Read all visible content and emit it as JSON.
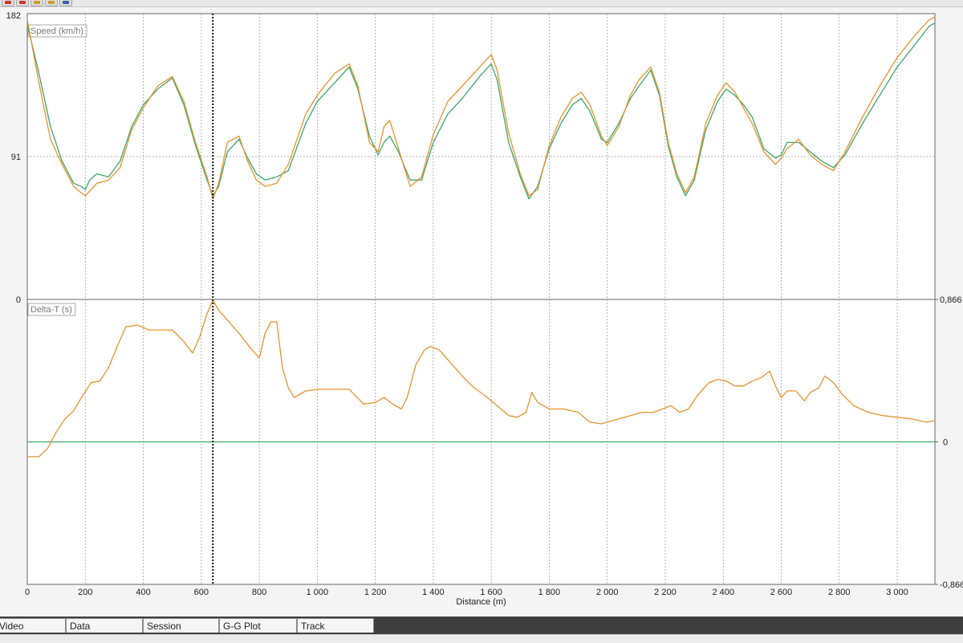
{
  "toolbar": {
    "icons": [
      "cursor-icon",
      "pencil-icon",
      "zoom-icon",
      "ruler-icon",
      "chart-icon"
    ]
  },
  "tabs": [
    {
      "label": "Video"
    },
    {
      "label": "Data"
    },
    {
      "label": "Session"
    },
    {
      "label": "G-G Plot"
    },
    {
      "label": "Track"
    }
  ],
  "colors": {
    "series_a": "#e8922e",
    "series_b": "#3fa56b",
    "grid": "#9a9a9a",
    "cursor": "#111111",
    "background": "#ffffff"
  },
  "chart_data": [
    {
      "type": "line",
      "title": "Speed (km/h)",
      "xlabel": "Distance (m)",
      "ylim": [
        0,
        182
      ],
      "yticks": [
        "182",
        "91",
        "0"
      ],
      "xlim": [
        0,
        3130
      ],
      "grid": true,
      "series": [
        {
          "color": "#e8922e",
          "x": [
            0,
            40,
            80,
            120,
            160,
            185,
            200,
            215,
            240,
            280,
            320,
            360,
            400,
            450,
            500,
            540,
            580,
            620,
            640,
            660,
            690,
            730,
            760,
            790,
            820,
            860,
            900,
            960,
            1000,
            1060,
            1110,
            1140,
            1180,
            1210,
            1230,
            1250,
            1280,
            1320,
            1360,
            1400,
            1450,
            1500,
            1560,
            1600,
            1620,
            1660,
            1700,
            1730,
            1760,
            1800,
            1840,
            1880,
            1910,
            1940,
            1980,
            2000,
            2040,
            2080,
            2110,
            2150,
            2180,
            2210,
            2240,
            2270,
            2300,
            2340,
            2380,
            2410,
            2440,
            2470,
            2500,
            2540,
            2580,
            2600,
            2620,
            2660,
            2700,
            2740,
            2780,
            2820,
            2880,
            2940,
            3000,
            3060,
            3110,
            3130
          ],
          "y": [
            178,
            138,
            102,
            86,
            72,
            68,
            66,
            69,
            74,
            76,
            84,
            108,
            122,
            136,
            142,
            126,
            100,
            78,
            64,
            74,
            100,
            104,
            88,
            76,
            72,
            74,
            86,
            118,
            130,
            144,
            150,
            136,
            100,
            94,
            110,
            114,
            96,
            72,
            78,
            105,
            126,
            136,
            148,
            156,
            146,
            106,
            80,
            66,
            70,
            98,
            116,
            128,
            132,
            124,
            104,
            98,
            110,
            130,
            140,
            148,
            132,
            100,
            80,
            68,
            78,
            112,
            130,
            138,
            132,
            122,
            112,
            94,
            86,
            90,
            96,
            102,
            92,
            86,
            82,
            94,
            116,
            136,
            154,
            168,
            178,
            180
          ]
        },
        {
          "color": "#3fa56b",
          "x": [
            0,
            40,
            80,
            120,
            160,
            185,
            200,
            215,
            240,
            280,
            320,
            360,
            400,
            450,
            500,
            540,
            580,
            620,
            640,
            660,
            690,
            730,
            760,
            790,
            820,
            860,
            900,
            960,
            1000,
            1060,
            1110,
            1140,
            1180,
            1210,
            1230,
            1250,
            1280,
            1320,
            1360,
            1400,
            1450,
            1500,
            1560,
            1600,
            1620,
            1660,
            1700,
            1730,
            1760,
            1800,
            1840,
            1880,
            1910,
            1940,
            1980,
            2000,
            2040,
            2080,
            2110,
            2150,
            2180,
            2210,
            2240,
            2270,
            2300,
            2340,
            2380,
            2410,
            2440,
            2470,
            2500,
            2540,
            2580,
            2600,
            2620,
            2660,
            2700,
            2740,
            2780,
            2820,
            2880,
            2940,
            3000,
            3060,
            3110,
            3130
          ],
          "y": [
            175,
            144,
            110,
            88,
            74,
            72,
            70,
            76,
            80,
            78,
            88,
            110,
            124,
            134,
            141,
            124,
            98,
            76,
            66,
            72,
            94,
            102,
            90,
            80,
            76,
            78,
            82,
            112,
            126,
            138,
            148,
            134,
            104,
            92,
            100,
            104,
            94,
            76,
            76,
            100,
            118,
            128,
            142,
            150,
            140,
            100,
            78,
            64,
            72,
            96,
            112,
            124,
            128,
            120,
            102,
            100,
            112,
            128,
            136,
            146,
            130,
            98,
            78,
            66,
            76,
            108,
            126,
            134,
            130,
            124,
            116,
            96,
            90,
            92,
            100,
            100,
            94,
            88,
            84,
            92,
            112,
            130,
            148,
            162,
            174,
            176
          ]
        }
      ]
    },
    {
      "type": "line",
      "title": "Delta-T (s)",
      "xlabel": "Distance (m)",
      "ylim": [
        -0.866,
        0.866
      ],
      "yticks": [
        "0,866",
        "0",
        "-0,866"
      ],
      "left_axis_label": "0",
      "xlim": [
        0,
        3130
      ],
      "xticks": [
        "0",
        "200",
        "400",
        "600",
        "800",
        "1 000",
        "1 200",
        "1 400",
        "1 600",
        "1 800",
        "2 000",
        "2 200",
        "2 400",
        "2 600",
        "2 800",
        "3 000"
      ],
      "xtick_values": [
        0,
        200,
        400,
        600,
        800,
        1000,
        1200,
        1400,
        1600,
        1800,
        2000,
        2200,
        2400,
        2600,
        2800,
        3000
      ],
      "cursor_x": 640,
      "grid": true,
      "series": [
        {
          "color": "#3fa56b",
          "x": [
            0,
            3130
          ],
          "y": [
            0,
            0
          ]
        },
        {
          "color": "#e8922e",
          "x": [
            0,
            40,
            70,
            100,
            130,
            160,
            190,
            220,
            250,
            280,
            310,
            340,
            380,
            420,
            460,
            500,
            540,
            570,
            595,
            620,
            640,
            660,
            690,
            730,
            770,
            800,
            820,
            840,
            860,
            880,
            900,
            920,
            960,
            1010,
            1060,
            1110,
            1160,
            1200,
            1230,
            1260,
            1290,
            1310,
            1340,
            1370,
            1390,
            1420,
            1460,
            1500,
            1540,
            1580,
            1620,
            1660,
            1690,
            1720,
            1740,
            1760,
            1800,
            1850,
            1900,
            1940,
            1980,
            2000,
            2040,
            2080,
            2120,
            2160,
            2190,
            2220,
            2250,
            2280,
            2310,
            2350,
            2380,
            2410,
            2440,
            2470,
            2500,
            2530,
            2560,
            2580,
            2600,
            2620,
            2650,
            2680,
            2700,
            2730,
            2750,
            2780,
            2810,
            2850,
            2900,
            2950,
            3000,
            3050,
            3100,
            3130
          ],
          "y": [
            -0.09,
            -0.09,
            -0.04,
            0.06,
            0.14,
            0.19,
            0.28,
            0.36,
            0.37,
            0.45,
            0.58,
            0.7,
            0.71,
            0.68,
            0.68,
            0.68,
            0.61,
            0.54,
            0.64,
            0.78,
            0.86,
            0.8,
            0.74,
            0.66,
            0.57,
            0.51,
            0.66,
            0.73,
            0.73,
            0.45,
            0.33,
            0.27,
            0.31,
            0.32,
            0.32,
            0.32,
            0.23,
            0.24,
            0.27,
            0.23,
            0.2,
            0.27,
            0.47,
            0.56,
            0.58,
            0.56,
            0.48,
            0.4,
            0.33,
            0.28,
            0.22,
            0.16,
            0.15,
            0.18,
            0.3,
            0.24,
            0.2,
            0.2,
            0.18,
            0.12,
            0.11,
            0.12,
            0.14,
            0.16,
            0.18,
            0.18,
            0.2,
            0.22,
            0.18,
            0.2,
            0.28,
            0.36,
            0.38,
            0.37,
            0.34,
            0.34,
            0.37,
            0.39,
            0.43,
            0.34,
            0.27,
            0.31,
            0.31,
            0.25,
            0.3,
            0.33,
            0.4,
            0.36,
            0.29,
            0.22,
            0.18,
            0.16,
            0.15,
            0.14,
            0.12,
            0.13
          ]
        }
      ]
    }
  ]
}
